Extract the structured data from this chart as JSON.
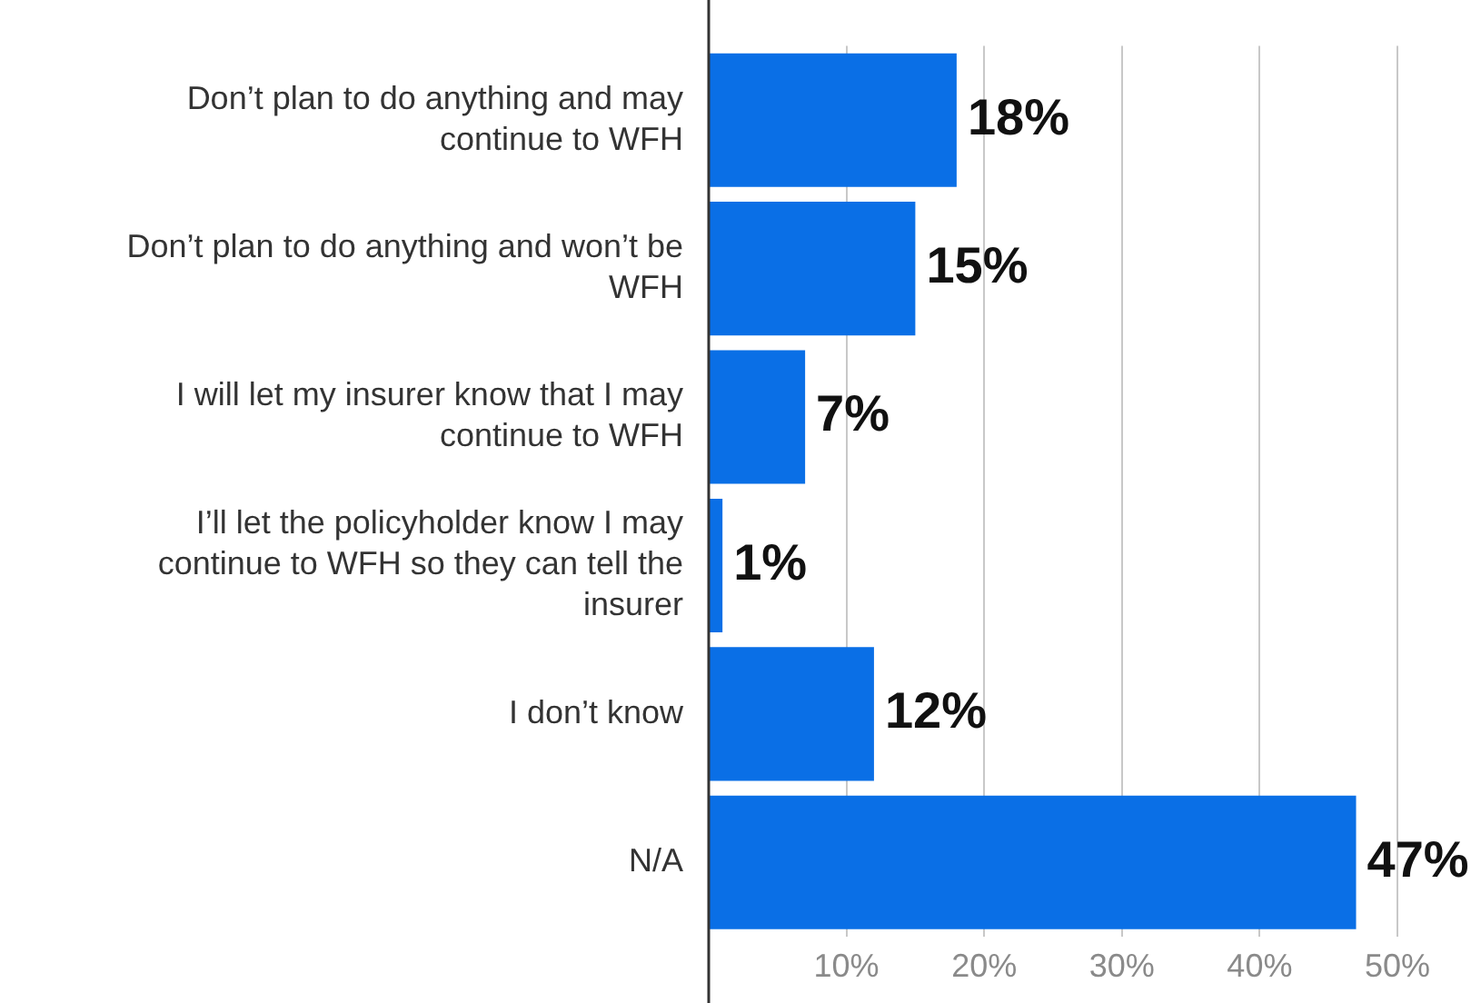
{
  "chart_data": {
    "type": "bar",
    "orientation": "horizontal",
    "categories": [
      "Don’t plan to do anything and may continue to WFH",
      "Don’t plan to do anything and won’t be WFH",
      "I will let my insurer know that I may continue to WFH",
      "I’ll let the policyholder know I may continue to WFH so they can tell the insurer",
      "I don’t know",
      "N/A"
    ],
    "values": [
      18,
      15,
      7,
      1,
      12,
      47
    ],
    "value_labels": [
      "18%",
      "15%",
      "7%",
      "1%",
      "12%",
      "47%"
    ],
    "color": "#0a6fe6",
    "xlim": [
      0,
      50
    ],
    "xticks": [
      {
        "value": 10,
        "label": "10%"
      },
      {
        "value": 20,
        "label": "20%"
      },
      {
        "value": 30,
        "label": "30%"
      },
      {
        "value": 40,
        "label": "40%"
      },
      {
        "value": 50,
        "label": "50%"
      }
    ],
    "grid": "x"
  }
}
